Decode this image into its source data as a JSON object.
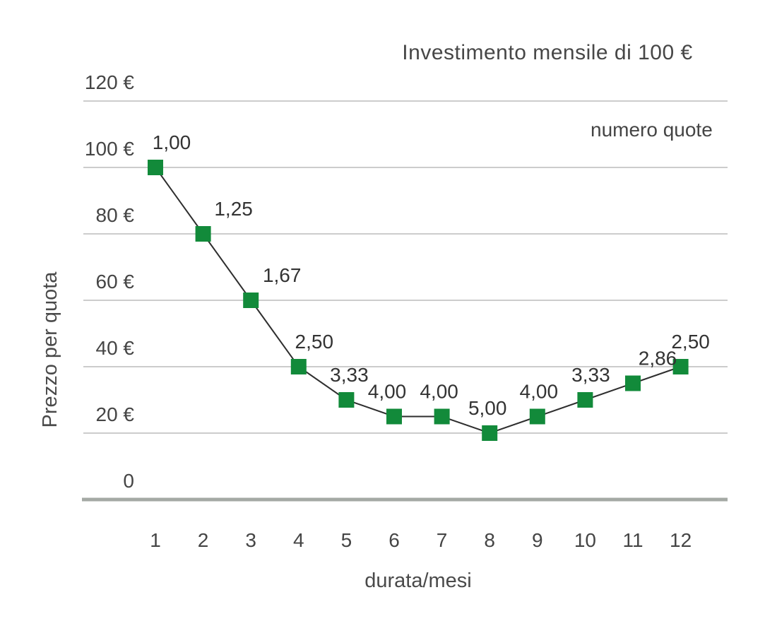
{
  "chart_data": {
    "type": "line",
    "title": "Investimento mensile di 100 €",
    "xlabel": "durata/mesi",
    "ylabel": "Prezzo per quota",
    "legend": [
      {
        "label": "numero quote",
        "marker": "square",
        "color": "#128a3a"
      }
    ],
    "legend_position": "top-right",
    "grid": true,
    "x": [
      1,
      2,
      3,
      4,
      5,
      6,
      7,
      8,
      9,
      10,
      11,
      12
    ],
    "x_tick_labels": [
      "1",
      "2",
      "3",
      "4",
      "5",
      "6",
      "7",
      "8",
      "9",
      "10",
      "11",
      "12"
    ],
    "series": [
      {
        "name": "numero quote",
        "price_per_quota_eur": [
          100,
          80,
          60,
          40,
          30,
          25,
          25,
          20,
          25,
          30,
          35,
          40
        ],
        "point_labels": [
          "1,00",
          "1,25",
          "1,67",
          "2,50",
          "3,33",
          "4,00",
          "4,00",
          "5,00",
          "4,00",
          "3,33",
          "2,86",
          "2,50"
        ],
        "quote_values": [
          1.0,
          1.25,
          1.67,
          2.5,
          3.33,
          4.0,
          4.0,
          5.0,
          4.0,
          3.33,
          2.86,
          2.5
        ]
      }
    ],
    "y_ticks": [
      {
        "value": 120,
        "label": "120 €"
      },
      {
        "value": 100,
        "label": "100 €"
      },
      {
        "value": 80,
        "label": "80 €"
      },
      {
        "value": 60,
        "label": "60 €"
      },
      {
        "value": 40,
        "label": "40 €"
      },
      {
        "value": 20,
        "label": "20 €"
      },
      {
        "value": 0,
        "label": "0"
      }
    ],
    "ylim": [
      0,
      120
    ],
    "colors": {
      "marker_green": "#128a3a",
      "series_line": "#2e2e2e",
      "gridline": "#bcbcbc",
      "axis_baseline": "#a4a9a4",
      "text": "#454545",
      "point_label_text": "#333333"
    }
  }
}
